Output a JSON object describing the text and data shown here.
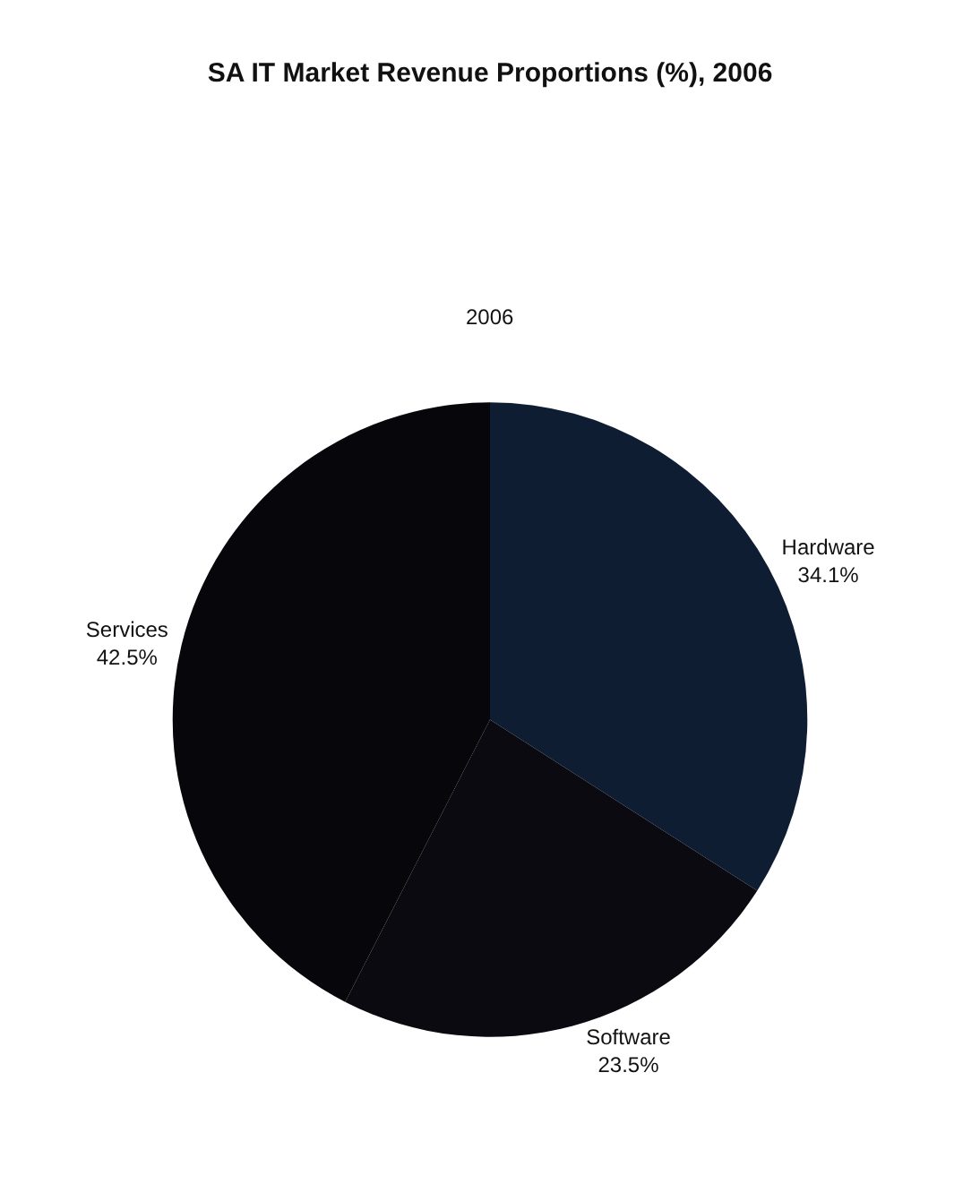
{
  "chart_data": {
    "type": "pie",
    "title": "SA IT Market Revenue Proportions (%), 2006",
    "subtitle": "2006",
    "categories": [
      "Hardware",
      "Software",
      "Services"
    ],
    "values": [
      34.1,
      23.5,
      42.5
    ],
    "value_labels": [
      "34.1%",
      "23.5%",
      "42.5%"
    ],
    "colors": [
      "#0f1d33",
      "#0a0a10",
      "#07070b"
    ],
    "legend": false
  }
}
